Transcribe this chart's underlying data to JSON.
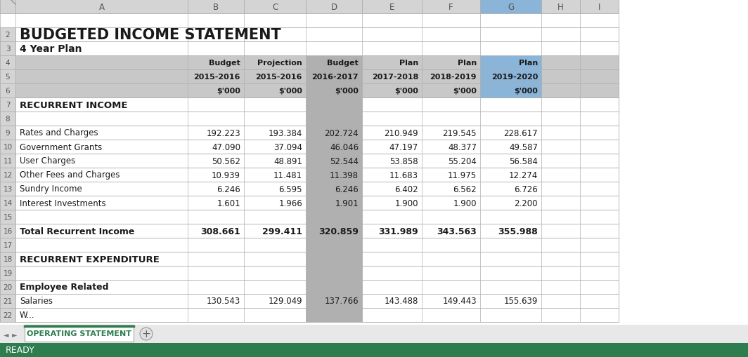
{
  "title": "BUDGETED INCOME STATEMENT",
  "subtitle": "4 Year Plan",
  "col_headers_row1": [
    "Budget",
    "Projection",
    "Budget",
    "Plan",
    "Plan",
    "Plan"
  ],
  "col_headers_row2": [
    "2015-2016",
    "2015-2016",
    "2016-2017",
    "2017-2018",
    "2018-2019",
    "2019-2020"
  ],
  "col_headers_row3": [
    "$'000",
    "$'000",
    "$'000",
    "$'000",
    "$'000",
    "$'000"
  ],
  "section_header1": "RECURRENT INCOME",
  "income_rows": [
    {
      "label": "Rates and Charges",
      "b": "192.223",
      "c": "193.384",
      "d": "202.724",
      "e": "210.949",
      "f": "219.545",
      "g": "228.617"
    },
    {
      "label": "Government Grants",
      "b": "47.090",
      "c": "37.094",
      "d": "46.046",
      "e": "47.197",
      "f": "48.377",
      "g": "49.587"
    },
    {
      "label": "User Charges",
      "b": "50.562",
      "c": "48.891",
      "d": "52.544",
      "e": "53.858",
      "f": "55.204",
      "g": "56.584"
    },
    {
      "label": "Other Fees and Charges",
      "b": "10.939",
      "c": "11.481",
      "d": "11.398",
      "e": "11.683",
      "f": "11.975",
      "g": "12.274"
    },
    {
      "label": "Sundry Income",
      "b": "6.246",
      "c": "6.595",
      "d": "6.246",
      "e": "6.402",
      "f": "6.562",
      "g": "6.726"
    },
    {
      "label": "Interest Investments",
      "b": "1.601",
      "c": "1.966",
      "d": "1.901",
      "e": "1.900",
      "f": "1.900",
      "g": "2.200"
    }
  ],
  "total_income": {
    "label": "Total Recurrent Income",
    "b": "308.661",
    "c": "299.411",
    "d": "320.859",
    "e": "331.989",
    "f": "343.563",
    "g": "355.988"
  },
  "section_header2": "RECURRENT EXPENDITURE",
  "section_header3": "Employee Related",
  "salary_row": {
    "label": "Salaries",
    "b": "130.543",
    "c": "129.049",
    "d": "137.766",
    "e": "143.488",
    "f": "149.443",
    "g": "155.639"
  },
  "last_row_label": "W...",
  "tab_color": "#2e7d4f",
  "tab_text": "OPERATING STATEMENT",
  "statusbar_color": "#2e7d4f",
  "statusbar_text": "READY",
  "col_hdr_bg": "#d4d4d4",
  "col_g_hdr_bg": "#8ab4d8",
  "row_num_bg": "#d4d4d4",
  "header_rows_bg": "#c8c8c8",
  "col_d_bg": "#b0b0b0",
  "white": "#ffffff",
  "grid_color": "#b0b0b0",
  "dark_text": "#1a1a1a",
  "green_text": "#2e7d4f"
}
